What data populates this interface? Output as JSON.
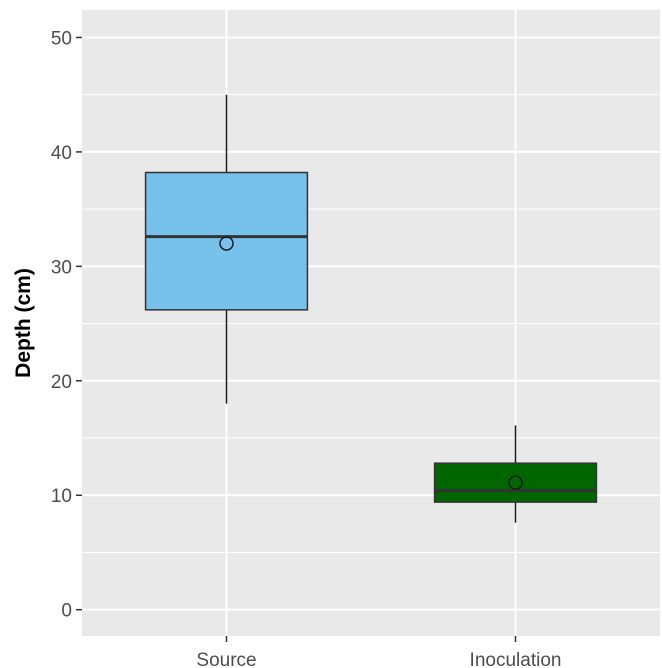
{
  "chart_data": {
    "type": "box",
    "ylabel": "Depth (cm)",
    "xlabel": "",
    "ylim": [
      -2.3,
      52.4
    ],
    "yticks": [
      0,
      10,
      20,
      30,
      40,
      50
    ],
    "categories": [
      "Source",
      "Inoculation"
    ],
    "boxes": [
      {
        "category": "Source",
        "whisker_low": 18,
        "q1": 26.2,
        "median": 32.6,
        "q3": 38.2,
        "whisker_high": 45,
        "mean": 32.0,
        "color": "#77c2ea"
      },
      {
        "category": "Inoculation",
        "whisker_low": 7.6,
        "q1": 9.4,
        "median": 10.4,
        "q3": 12.8,
        "whisker_high": 16.1,
        "mean": 11.1,
        "color": "#006600"
      }
    ],
    "grid": true,
    "panel_background": "#e9e9e9",
    "grid_color": "#ffffff"
  }
}
